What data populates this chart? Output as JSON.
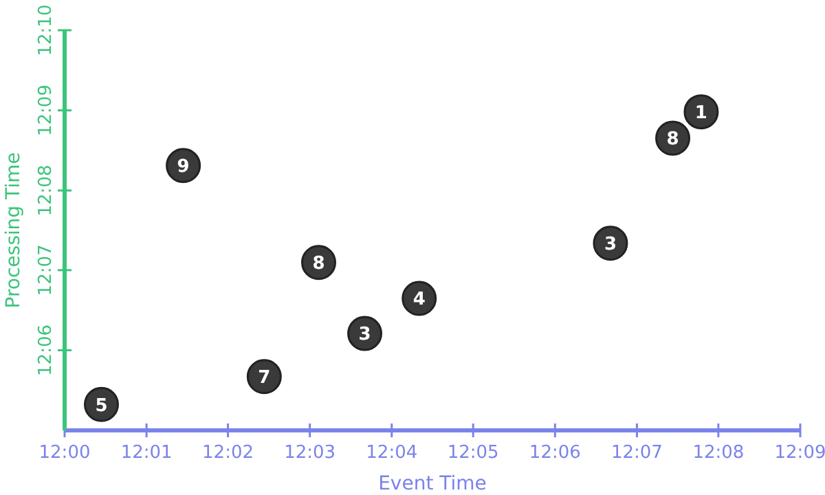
{
  "chart_data": {
    "type": "scatter",
    "xlabel": "Event Time",
    "ylabel": "Processing Time",
    "x": [
      12.0075,
      12.0242,
      12.0407,
      12.0518,
      12.0612,
      12.0723,
      12.1113,
      12.124,
      12.1298
    ],
    "values": [
      12.0887,
      12.1385,
      12.0945,
      12.1183,
      12.1035,
      12.1108,
      12.1223,
      12.1442,
      12.1497
    ],
    "annotations": [
      {
        "text": "5",
        "x": 12.0075,
        "y": 12.0887
      },
      {
        "text": "9",
        "x": 12.0242,
        "y": 12.1385
      },
      {
        "text": "7",
        "x": 12.0407,
        "y": 12.0945
      },
      {
        "text": "8",
        "x": 12.0518,
        "y": 12.1183
      },
      {
        "text": "3",
        "x": 12.0612,
        "y": 12.1035
      },
      {
        "text": "4",
        "x": 12.0723,
        "y": 12.1108
      },
      {
        "text": "3",
        "x": 12.1113,
        "y": 12.1223
      },
      {
        "text": "8",
        "x": 12.124,
        "y": 12.1442
      },
      {
        "text": "1",
        "x": 12.1298,
        "y": 12.1497
      }
    ],
    "color": "#3a3a3a",
    "marker": "circle",
    "grid": false,
    "xlim": [
      12,
      12.15
    ],
    "xticks": [
      {
        "value": 12,
        "label": "12:00"
      },
      {
        "value": 12.0167,
        "label": "12:01"
      },
      {
        "value": 12.0333,
        "label": "12:02"
      },
      {
        "value": 12.05,
        "label": "12:03"
      },
      {
        "value": 12.0667,
        "label": "12:04"
      },
      {
        "value": 12.0833,
        "label": "12:05"
      },
      {
        "value": 12.1,
        "label": "12:06"
      },
      {
        "value": 12.1167,
        "label": "12:07"
      },
      {
        "value": 12.1333,
        "label": "12:08"
      },
      {
        "value": 12.15,
        "label": "12:09"
      }
    ],
    "ylim": [
      12.0833,
      12.1667
    ],
    "yticks": [
      {
        "value": 12.1,
        "label": "12:06"
      },
      {
        "value": 12.1167,
        "label": "12:07"
      },
      {
        "value": 12.1333,
        "label": "12:08"
      },
      {
        "value": 12.15,
        "label": "12:09"
      },
      {
        "value": 12.1667,
        "label": "12:10"
      }
    ]
  }
}
